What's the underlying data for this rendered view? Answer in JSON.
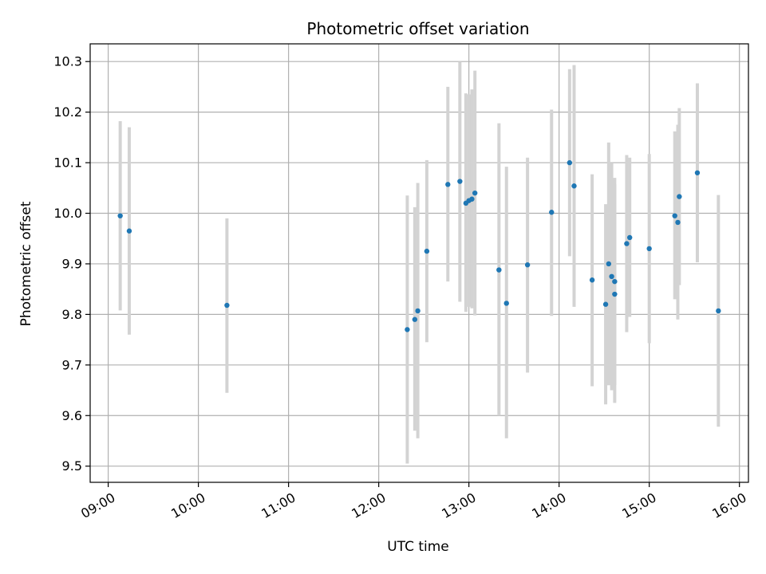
{
  "chart_data": {
    "type": "scatter",
    "title": "Photometric offset variation",
    "xlabel": "UTC time",
    "ylabel": "Photometric offset",
    "xlim": [
      "08:48",
      "16:06"
    ],
    "ylim": [
      9.468,
      10.335
    ],
    "x_ticks": [
      "09:00",
      "10:00",
      "11:00",
      "12:00",
      "13:00",
      "14:00",
      "15:00",
      "16:00"
    ],
    "y_ticks": [
      "9.5",
      "9.6",
      "9.7",
      "9.8",
      "9.9",
      "10.0",
      "10.1",
      "10.2",
      "10.3"
    ],
    "grid": true,
    "colors": {
      "marker": "#1f77b4",
      "errorbar": "#d3d3d3",
      "grid": "#b0b0b0"
    },
    "series": [
      {
        "points": [
          {
            "x": "09:08",
            "y": 9.995,
            "low": 9.808,
            "high": 10.182
          },
          {
            "x": "09:14",
            "y": 9.965,
            "low": 9.76,
            "high": 10.17
          },
          {
            "x": "10:19",
            "y": 9.818,
            "low": 9.645,
            "high": 9.99
          },
          {
            "x": "12:19",
            "y": 9.77,
            "low": 9.505,
            "high": 10.035
          },
          {
            "x": "12:24",
            "y": 9.79,
            "low": 9.57,
            "high": 10.012
          },
          {
            "x": "12:26",
            "y": 9.807,
            "low": 9.555,
            "high": 10.06
          },
          {
            "x": "12:32",
            "y": 9.925,
            "low": 9.745,
            "high": 10.105
          },
          {
            "x": "12:46",
            "y": 10.057,
            "low": 9.865,
            "high": 10.25
          },
          {
            "x": "12:54",
            "y": 10.063,
            "low": 9.825,
            "high": 10.3
          },
          {
            "x": "12:58",
            "y": 10.02,
            "low": 9.805,
            "high": 10.237
          },
          {
            "x": "13:00",
            "y": 10.025,
            "low": 9.815,
            "high": 10.235
          },
          {
            "x": "13:02",
            "y": 10.028,
            "low": 9.812,
            "high": 10.245
          },
          {
            "x": "13:04",
            "y": 10.04,
            "low": 9.798,
            "high": 10.282
          },
          {
            "x": "13:20",
            "y": 9.888,
            "low": 9.6,
            "high": 10.178
          },
          {
            "x": "13:25",
            "y": 9.822,
            "low": 9.555,
            "high": 10.092
          },
          {
            "x": "13:39",
            "y": 9.898,
            "low": 9.685,
            "high": 10.11
          },
          {
            "x": "13:55",
            "y": 10.002,
            "low": 9.797,
            "high": 10.205
          },
          {
            "x": "14:07",
            "y": 10.1,
            "low": 9.915,
            "high": 10.285
          },
          {
            "x": "14:10",
            "y": 10.054,
            "low": 9.815,
            "high": 10.293
          },
          {
            "x": "14:22",
            "y": 9.868,
            "low": 9.658,
            "high": 10.077
          },
          {
            "x": "14:31",
            "y": 9.82,
            "low": 9.622,
            "high": 10.018
          },
          {
            "x": "14:33",
            "y": 9.9,
            "low": 9.66,
            "high": 10.14
          },
          {
            "x": "14:35",
            "y": 9.875,
            "low": 9.65,
            "high": 10.1
          },
          {
            "x": "14:37",
            "y": 9.865,
            "low": 9.66,
            "high": 10.07
          },
          {
            "x": "14:37",
            "y": 9.84,
            "low": 9.625,
            "high": 10.058
          },
          {
            "x": "14:45",
            "y": 9.94,
            "low": 9.765,
            "high": 10.115
          },
          {
            "x": "14:47",
            "y": 9.952,
            "low": 9.795,
            "high": 10.11
          },
          {
            "x": "15:00",
            "y": 9.93,
            "low": 9.743,
            "high": 10.117
          },
          {
            "x": "15:17",
            "y": 9.995,
            "low": 9.83,
            "high": 10.162
          },
          {
            "x": "15:19",
            "y": 9.982,
            "low": 9.79,
            "high": 10.175
          },
          {
            "x": "15:20",
            "y": 10.033,
            "low": 9.858,
            "high": 10.208
          },
          {
            "x": "15:32",
            "y": 10.08,
            "low": 9.903,
            "high": 10.257
          },
          {
            "x": "15:46",
            "y": 9.807,
            "low": 9.578,
            "high": 10.036
          }
        ]
      }
    ]
  }
}
